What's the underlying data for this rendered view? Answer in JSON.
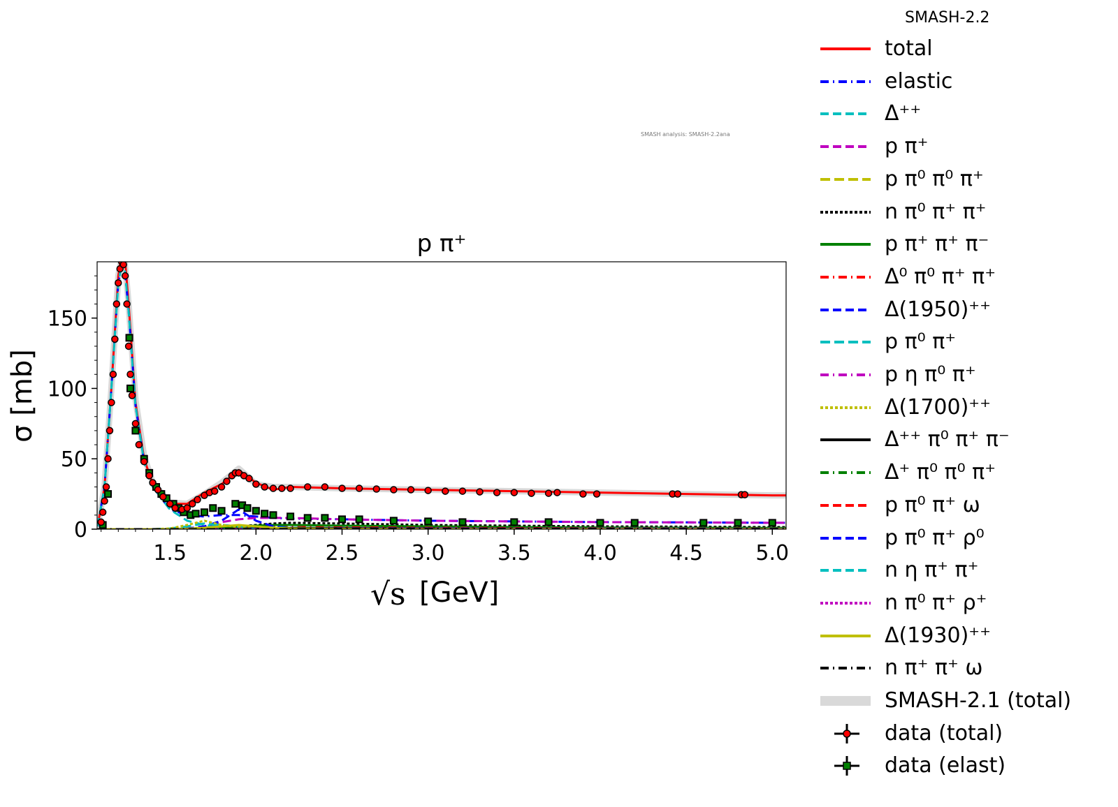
{
  "chart_data": {
    "type": "line",
    "title": "p π⁺",
    "xlabel": "[GeV]",
    "xlabel_symbol": "√s",
    "ylabel": "σ [mb]",
    "xlim": [
      1.077,
      5.08
    ],
    "ylim": [
      0,
      190
    ],
    "xticks": [
      "1.5",
      "2.0",
      "2.5",
      "3.0",
      "3.5",
      "4.0",
      "4.5",
      "5.0"
    ],
    "yticks": [
      "0",
      "50",
      "100",
      "150"
    ],
    "grid": false,
    "legend_placement": "outside-right",
    "legend_title": "SMASH-2.2",
    "annotation": "SMASH analysis: SMASH-2.2ana",
    "model_x": [
      1.08,
      1.12,
      1.16,
      1.2,
      1.23,
      1.26,
      1.3,
      1.35,
      1.4,
      1.5,
      1.6,
      1.7,
      1.8,
      1.9,
      2.0,
      2.1,
      2.2,
      2.5,
      3.0,
      3.5,
      4.0,
      4.5,
      5.0,
      5.08
    ],
    "series": [
      {
        "name": "SMASH-2.1 (total)",
        "color": "#d9d9d9",
        "dash": "solid",
        "width": 9,
        "values": [
          2,
          30,
          100,
          180,
          200,
          160,
          92,
          52,
          33,
          19,
          18,
          25,
          33,
          43,
          32,
          30,
          30,
          29,
          28,
          27,
          26,
          25,
          24,
          24
        ]
      },
      {
        "name": "total",
        "color": "#ff0000",
        "dash": "solid",
        "width": 3,
        "values": [
          2,
          30,
          100,
          180,
          205,
          160,
          90,
          50,
          32,
          18,
          18,
          26,
          32,
          42,
          33,
          28,
          30,
          29,
          28,
          27,
          26,
          25,
          24,
          24
        ]
      },
      {
        "name": "elastic",
        "color": "#0000ff",
        "dash": "12,6,2,6",
        "width": 3,
        "values": [
          2,
          30,
          100,
          175,
          195,
          155,
          88,
          48,
          30,
          14,
          10,
          9,
          10,
          10,
          9,
          8,
          7.5,
          7,
          6,
          5.5,
          5,
          4.8,
          4.5,
          4.5
        ]
      },
      {
        "name": "Δ⁺⁺",
        "color": "#00bfbf",
        "dash": "12,6",
        "width": 3,
        "values": [
          2,
          30,
          100,
          175,
          195,
          155,
          88,
          48,
          30,
          14,
          6,
          3,
          1.5,
          1,
          0.5,
          0.3,
          0.2,
          0.1,
          0,
          0,
          0,
          0,
          0,
          0
        ]
      },
      {
        "name": "p π⁺",
        "color": "#bf00bf",
        "dash": "12,6",
        "width": 3,
        "values": [
          0,
          0,
          0,
          0,
          0,
          0,
          0,
          0,
          0,
          0,
          0.5,
          2,
          5,
          7,
          8,
          8,
          8,
          7,
          6,
          5.5,
          5,
          4.8,
          4.5,
          4.5
        ]
      },
      {
        "name": "p π⁰ π⁰ π⁺",
        "color": "#bfbf00",
        "dash": "14,6",
        "width": 3,
        "values": [
          0,
          0,
          0,
          0,
          0,
          0,
          0,
          0,
          0,
          0.3,
          2,
          4,
          3,
          2,
          1.5,
          1.2,
          1,
          0.8,
          0.5,
          0.4,
          0.3,
          0.3,
          0.2,
          0.2
        ]
      },
      {
        "name": "n π⁰ π⁺ π⁺",
        "color": "#000000",
        "dash": "4,3",
        "width": 3,
        "values": [
          0,
          0,
          0,
          0,
          0,
          0,
          0,
          0,
          0,
          0,
          0.5,
          1,
          1.5,
          2,
          3,
          4,
          4.5,
          4,
          3,
          2.5,
          2,
          1.8,
          1.5,
          1.5
        ]
      },
      {
        "name": "p π⁺ π⁺ π⁻",
        "color": "#008000",
        "dash": "solid",
        "width": 3,
        "values": [
          0,
          0,
          0,
          0,
          0,
          0,
          0,
          0,
          0,
          0,
          0.3,
          0.8,
          1.5,
          2,
          2.5,
          3,
          3,
          2.5,
          2,
          1.5,
          1.2,
          1,
          0.9,
          0.9
        ]
      },
      {
        "name": "Δ⁰ π⁰ π⁺ π⁺",
        "color": "#ff0000",
        "dash": "12,6,2,6",
        "width": 3,
        "values": [
          0,
          0,
          0,
          0,
          0,
          0,
          0,
          0,
          0,
          0,
          0,
          0,
          0.2,
          0.5,
          1,
          1.5,
          1.5,
          1.3,
          1,
          0.8,
          0.6,
          0.5,
          0.4,
          0.4
        ]
      },
      {
        "name": "Δ(1950)⁺⁺",
        "color": "#0000ff",
        "dash": "12,6",
        "width": 3,
        "values": [
          0,
          0,
          0,
          0,
          0,
          0,
          0,
          0,
          0,
          0,
          0.5,
          2,
          6,
          14,
          6,
          2,
          1,
          0.3,
          0,
          0,
          0,
          0,
          0,
          0
        ]
      },
      {
        "name": "p π⁰ π⁺",
        "color": "#00bfbf",
        "dash": "14,6",
        "width": 3,
        "values": [
          0,
          0,
          0,
          0,
          0,
          0,
          0,
          0,
          0,
          0.5,
          2,
          4,
          3,
          2,
          1.5,
          1.2,
          1,
          0.8,
          0.6,
          0.5,
          0.4,
          0.3,
          0.3,
          0.3
        ]
      },
      {
        "name": "p η π⁰ π⁺",
        "color": "#bf00bf",
        "dash": "12,6,2,6",
        "width": 3,
        "values": [
          0,
          0,
          0,
          0,
          0,
          0,
          0,
          0,
          0,
          0,
          0,
          0,
          0.1,
          0.3,
          0.5,
          0.6,
          0.6,
          0.5,
          0.4,
          0.3,
          0.3,
          0.2,
          0.2,
          0.2
        ]
      },
      {
        "name": "Δ(1700)⁺⁺",
        "color": "#bfbf00",
        "dash": "4,3",
        "width": 3,
        "values": [
          0,
          0,
          0,
          0,
          0,
          0,
          0,
          0,
          0,
          0.5,
          3,
          6,
          3,
          1.5,
          0.8,
          0.4,
          0.2,
          0.1,
          0,
          0,
          0,
          0,
          0,
          0
        ]
      },
      {
        "name": "Δ⁺⁺ π⁰ π⁺ π⁻",
        "color": "#000000",
        "dash": "solid",
        "width": 3,
        "values": [
          0,
          0,
          0,
          0,
          0,
          0,
          0,
          0,
          0,
          0,
          0,
          0,
          0.1,
          0.3,
          0.5,
          0.7,
          0.8,
          0.8,
          0.6,
          0.5,
          0.4,
          0.3,
          0.3,
          0.3
        ]
      },
      {
        "name": "Δ⁺ π⁰ π⁰ π⁺",
        "color": "#008000",
        "dash": "12,6,2,6",
        "width": 3,
        "values": [
          0,
          0,
          0,
          0,
          0,
          0,
          0,
          0,
          0,
          0,
          0,
          0,
          0.1,
          0.2,
          0.3,
          0.4,
          0.4,
          0.4,
          0.3,
          0.2,
          0.2,
          0.2,
          0.1,
          0.1
        ]
      },
      {
        "name": "p π⁰ π⁺ ω",
        "color": "#ff0000",
        "dash": "12,6",
        "width": 3,
        "values": [
          0,
          0,
          0,
          0,
          0,
          0,
          0,
          0,
          0,
          0,
          0,
          0,
          0,
          0,
          0,
          0.1,
          0.2,
          0.3,
          0.3,
          0.3,
          0.3,
          0.2,
          0.2,
          0.2
        ]
      },
      {
        "name": "p π⁰ π⁺ ρ⁰",
        "color": "#0000ff",
        "dash": "12,6",
        "width": 3,
        "values": [
          0,
          0,
          0,
          0,
          0,
          0,
          0,
          0,
          0,
          0,
          0,
          0,
          0,
          0,
          0.1,
          0.2,
          0.3,
          0.4,
          0.4,
          0.3,
          0.3,
          0.3,
          0.2,
          0.2
        ]
      },
      {
        "name": "n η π⁺ π⁺",
        "color": "#00bfbf",
        "dash": "12,6",
        "width": 3,
        "values": [
          0,
          0,
          0,
          0,
          0,
          0,
          0,
          0,
          0,
          0,
          0,
          0,
          0,
          0.1,
          0.2,
          0.3,
          0.3,
          0.3,
          0.2,
          0.2,
          0.2,
          0.1,
          0.1,
          0.1
        ]
      },
      {
        "name": "n π⁰ π⁺ ρ⁺",
        "color": "#bf00bf",
        "dash": "4,3",
        "width": 3,
        "values": [
          0,
          0,
          0,
          0,
          0,
          0,
          0,
          0,
          0,
          0,
          0,
          0,
          0,
          0,
          0.1,
          0.2,
          0.3,
          0.4,
          0.4,
          0.3,
          0.3,
          0.3,
          0.2,
          0.2
        ]
      },
      {
        "name": "Δ(1930)⁺⁺",
        "color": "#bfbf00",
        "dash": "solid",
        "width": 3,
        "values": [
          0,
          0,
          0,
          0,
          0,
          0,
          0,
          0,
          0,
          0,
          0.3,
          1,
          2,
          3,
          2,
          1,
          0.5,
          0.2,
          0,
          0,
          0,
          0,
          0,
          0
        ]
      },
      {
        "name": "n π⁺ π⁺ ω",
        "color": "#000000",
        "dash": "12,6,2,6",
        "width": 3,
        "values": [
          0,
          0,
          0,
          0,
          0,
          0,
          0,
          0,
          0,
          0,
          0,
          0,
          0,
          0,
          0,
          0.1,
          0.1,
          0.2,
          0.2,
          0.2,
          0.2,
          0.1,
          0.1,
          0.1
        ]
      }
    ],
    "data_total": {
      "name": "data (total)",
      "color": "#ff0000",
      "marker": "circle",
      "x": [
        1.1,
        1.11,
        1.12,
        1.13,
        1.14,
        1.15,
        1.16,
        1.17,
        1.18,
        1.19,
        1.2,
        1.21,
        1.22,
        1.23,
        1.24,
        1.25,
        1.26,
        1.27,
        1.28,
        1.3,
        1.32,
        1.35,
        1.38,
        1.4,
        1.43,
        1.46,
        1.5,
        1.53,
        1.57,
        1.6,
        1.63,
        1.66,
        1.7,
        1.73,
        1.76,
        1.8,
        1.83,
        1.86,
        1.88,
        1.9,
        1.93,
        1.96,
        2.0,
        2.05,
        2.1,
        2.15,
        2.2,
        2.3,
        2.4,
        2.5,
        2.6,
        2.7,
        2.8,
        2.9,
        3.0,
        3.1,
        3.2,
        3.3,
        3.4,
        3.5,
        3.6,
        3.7,
        3.75,
        3.9,
        3.98,
        4.42,
        4.45,
        4.82,
        4.84
      ],
      "y": [
        5,
        12,
        20,
        30,
        50,
        70,
        90,
        110,
        135,
        160,
        175,
        185,
        190,
        188,
        180,
        160,
        130,
        110,
        95,
        75,
        60,
        48,
        38,
        33,
        28,
        23,
        18,
        15,
        14,
        15,
        18,
        21,
        24,
        26,
        27,
        30,
        34,
        38,
        40,
        40,
        38,
        36,
        32,
        30,
        29,
        29,
        29,
        30,
        30,
        29,
        29,
        28.5,
        28,
        28,
        27.5,
        27,
        27,
        26.5,
        26,
        26,
        25.5,
        25.5,
        26,
        25,
        25,
        25,
        25,
        24.5,
        24.5
      ]
    },
    "data_elastic": {
      "name": "data (elast)",
      "color": "#008000",
      "marker": "square",
      "x": [
        1.11,
        1.14,
        1.264,
        1.27,
        1.3,
        1.35,
        1.38,
        1.42,
        1.45,
        1.48,
        1.52,
        1.55,
        1.58,
        1.62,
        1.65,
        1.7,
        1.75,
        1.8,
        1.88,
        1.92,
        1.95,
        2.0,
        2.05,
        2.1,
        2.2,
        2.3,
        2.4,
        2.5,
        2.6,
        2.8,
        3.0,
        3.2,
        3.5,
        3.7,
        4.0,
        4.2,
        4.6,
        4.8,
        5.0
      ],
      "y": [
        3,
        25,
        136,
        100,
        70,
        50,
        40,
        30,
        25,
        22,
        18,
        15,
        12,
        10,
        11,
        12,
        15,
        13,
        18,
        17,
        15,
        13,
        11,
        10,
        9,
        8,
        8,
        7,
        7,
        6,
        5.5,
        5,
        5,
        5,
        4.5,
        4.5,
        4.5,
        4.5,
        4.5
      ]
    }
  }
}
